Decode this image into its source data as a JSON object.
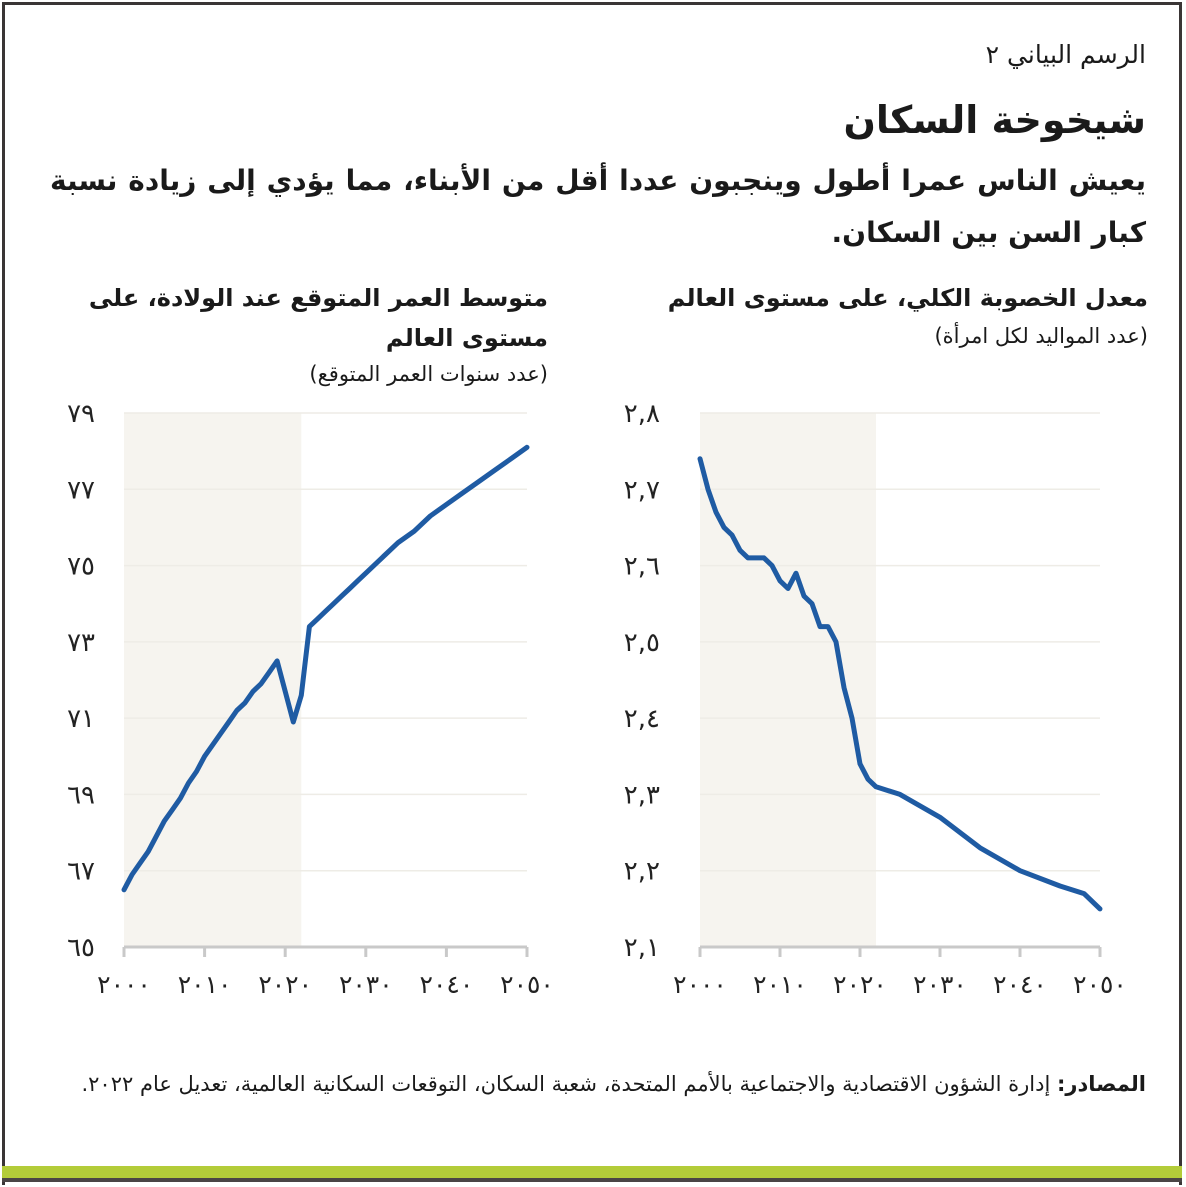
{
  "header": {
    "label": "الرسم البياني ٢",
    "title": "شيخوخة السكان",
    "subtitle": "يعيش الناس عمرا أطول وينجبون عددا أقل من الأبناء، مما يؤدي إلى زيادة نسبة كبار السن بين السكان."
  },
  "charts_meta": {
    "fertility": {
      "title": "معدل الخصوبة الكلي، على مستوى العالم",
      "subtitle": "(عدد المواليد لكل امرأة)"
    },
    "life_expectancy": {
      "title": "متوسط العمر المتوقع عند الولادة، على مستوى العالم",
      "subtitle": "(عدد سنوات العمر المتوقع)"
    }
  },
  "footer": {
    "source_label": "المصادر:",
    "source_text": "إدارة الشؤون الاقتصادية والاجتماعية بالأمم المتحدة، شعبة السكان، التوقعات السكانية العالمية، تعديل عام ٢٠٢٢."
  },
  "colors": {
    "line": "#1f5ba3",
    "shade": "#f6f4ef",
    "grid": "#eeece6",
    "axis": "#c9c9c9",
    "accent_bar": "#b3cc39",
    "frame": "#3a3535"
  },
  "chart_data": [
    {
      "type": "line",
      "title": "متوسط العمر المتوقع عند الولادة، على مستوى العالم",
      "ylabel": "(عدد سنوات العمر المتوقع)",
      "xlabel": "",
      "xlim": [
        2000,
        2050
      ],
      "ylim": [
        65,
        79
      ],
      "x_ticks": [
        2000,
        2010,
        2020,
        2030,
        2040,
        2050
      ],
      "x_tick_labels": [
        "٢٠٠٠",
        "٢٠١٠",
        "٢٠٢٠",
        "٢٠٣٠",
        "٢٠٤٠",
        "٢٠٥٠"
      ],
      "y_ticks": [
        65,
        67,
        69,
        71,
        73,
        75,
        77,
        79
      ],
      "y_tick_labels": [
        "٦٥",
        "٦٧",
        "٦٩",
        "٧١",
        "٧٣",
        "٧٥",
        "٧٧",
        "٧٩"
      ],
      "grid": "horizontal",
      "shaded_region": {
        "from": 2000,
        "to": 2022,
        "meaning": "estimates (historical)"
      },
      "series": [
        {
          "name": "Life expectancy at birth",
          "x": [
            2000,
            2001,
            2002,
            2003,
            2004,
            2005,
            2006,
            2007,
            2008,
            2009,
            2010,
            2011,
            2012,
            2013,
            2014,
            2015,
            2016,
            2017,
            2018,
            2019,
            2020,
            2021,
            2022,
            2023,
            2024,
            2025,
            2026,
            2027,
            2028,
            2029,
            2030,
            2032,
            2034,
            2036,
            2038,
            2040,
            2042,
            2044,
            2046,
            2048,
            2050
          ],
          "values": [
            66.5,
            66.9,
            67.2,
            67.5,
            67.9,
            68.3,
            68.6,
            68.9,
            69.3,
            69.6,
            70.0,
            70.3,
            70.6,
            70.9,
            71.2,
            71.4,
            71.7,
            71.9,
            72.2,
            72.5,
            71.7,
            70.9,
            71.6,
            73.4,
            73.6,
            73.8,
            74.0,
            74.2,
            74.4,
            74.6,
            74.8,
            75.2,
            75.6,
            75.9,
            76.3,
            76.6,
            76.9,
            77.2,
            77.5,
            77.8,
            78.1
          ]
        }
      ]
    },
    {
      "type": "line",
      "title": "معدل الخصوبة الكلي، على مستوى العالم",
      "ylabel": "(عدد المواليد لكل امرأة)",
      "xlabel": "",
      "xlim": [
        2000,
        2050
      ],
      "ylim": [
        2.1,
        2.8
      ],
      "x_ticks": [
        2000,
        2010,
        2020,
        2030,
        2040,
        2050
      ],
      "x_tick_labels": [
        "٢٠٠٠",
        "٢٠١٠",
        "٢٠٢٠",
        "٢٠٣٠",
        "٢٠٤٠",
        "٢٠٥٠"
      ],
      "y_ticks": [
        2.1,
        2.2,
        2.3,
        2.4,
        2.5,
        2.6,
        2.7,
        2.8
      ],
      "y_tick_labels": [
        "٢,١",
        "٢,٢",
        "٢,٣",
        "٢,٤",
        "٢,٥",
        "٢,٦",
        "٢,٧",
        "٢,٨"
      ],
      "grid": "horizontal",
      "shaded_region": {
        "from": 2000,
        "to": 2022,
        "meaning": "estimates (historical)"
      },
      "series": [
        {
          "name": "Total fertility rate",
          "x": [
            2000,
            2001,
            2002,
            2003,
            2004,
            2005,
            2006,
            2007,
            2008,
            2009,
            2010,
            2011,
            2012,
            2013,
            2014,
            2015,
            2016,
            2017,
            2018,
            2019,
            2020,
            2021,
            2022,
            2025,
            2030,
            2035,
            2040,
            2045,
            2048,
            2050
          ],
          "values": [
            2.74,
            2.7,
            2.67,
            2.65,
            2.64,
            2.62,
            2.61,
            2.61,
            2.61,
            2.6,
            2.58,
            2.57,
            2.59,
            2.56,
            2.55,
            2.52,
            2.52,
            2.5,
            2.44,
            2.4,
            2.34,
            2.32,
            2.31,
            2.3,
            2.27,
            2.23,
            2.2,
            2.18,
            2.17,
            2.15
          ]
        }
      ]
    }
  ]
}
